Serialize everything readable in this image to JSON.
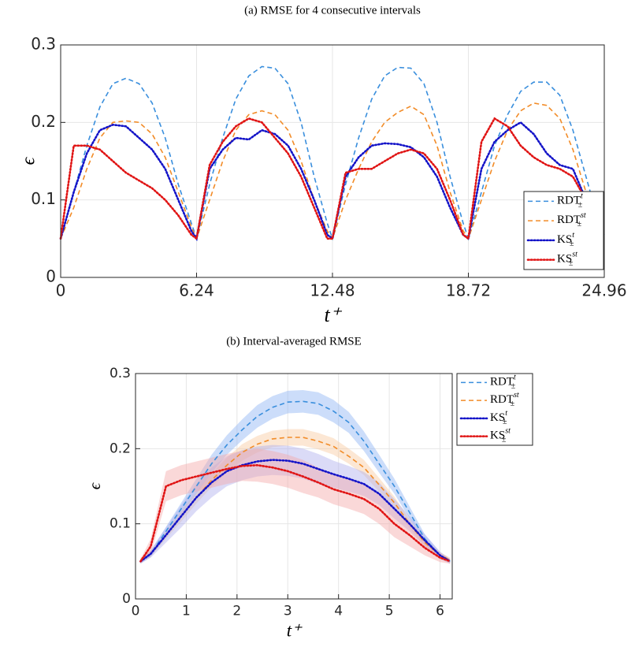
{
  "chart_data": [
    {
      "type": "line",
      "title": "(a) RMSE for 4 consecutive intervals",
      "xlabel": "t⁺",
      "ylabel": "ϵ",
      "xlim": [
        0,
        24.96
      ],
      "ylim": [
        0,
        0.3
      ],
      "xticks": [
        0,
        6.24,
        12.48,
        18.72,
        24.96
      ],
      "yticks": [
        0,
        0.1,
        0.2,
        0.3
      ],
      "grid": true,
      "legend": "lower right",
      "x": [
        0,
        0.6,
        1.2,
        1.8,
        2.4,
        3.0,
        3.6,
        4.2,
        4.8,
        5.4,
        6.0,
        6.24,
        6.84,
        7.44,
        8.04,
        8.64,
        9.24,
        9.84,
        10.44,
        11.04,
        11.64,
        12.24,
        12.48,
        13.08,
        13.68,
        14.28,
        14.88,
        15.48,
        16.08,
        16.68,
        17.28,
        17.88,
        18.48,
        18.72,
        19.32,
        19.92,
        20.52,
        21.12,
        21.72,
        22.32,
        22.92,
        23.52,
        24.12,
        24.72,
        24.96
      ],
      "series": [
        {
          "name": "RDT",
          "name_sup": "t",
          "name_sub": "±",
          "color": "#3a8fdd",
          "style": "dashed",
          "values": [
            0.05,
            0.11,
            0.17,
            0.22,
            0.25,
            0.257,
            0.25,
            0.225,
            0.18,
            0.12,
            0.07,
            0.05,
            0.12,
            0.18,
            0.23,
            0.26,
            0.272,
            0.27,
            0.25,
            0.2,
            0.13,
            0.07,
            0.05,
            0.12,
            0.18,
            0.23,
            0.26,
            0.271,
            0.27,
            0.25,
            0.2,
            0.13,
            0.07,
            0.05,
            0.11,
            0.17,
            0.21,
            0.24,
            0.252,
            0.252,
            0.235,
            0.19,
            0.13,
            0.07,
            0.055
          ]
        },
        {
          "name": "RDT",
          "name_sup": "st",
          "name_sub": "±",
          "color": "#f28c28",
          "style": "dashed",
          "values": [
            0.05,
            0.09,
            0.14,
            0.18,
            0.2,
            0.202,
            0.2,
            0.185,
            0.155,
            0.11,
            0.065,
            0.05,
            0.1,
            0.15,
            0.19,
            0.21,
            0.215,
            0.21,
            0.19,
            0.15,
            0.1,
            0.06,
            0.05,
            0.1,
            0.14,
            0.175,
            0.2,
            0.213,
            0.221,
            0.21,
            0.17,
            0.11,
            0.06,
            0.05,
            0.1,
            0.15,
            0.19,
            0.215,
            0.225,
            0.222,
            0.205,
            0.165,
            0.11,
            0.06,
            0.05
          ]
        },
        {
          "name": "KS",
          "name_sup": "t",
          "name_sub": "±",
          "color": "#1414c8",
          "style": "dotted",
          "values": [
            0.05,
            0.11,
            0.16,
            0.19,
            0.197,
            0.195,
            0.18,
            0.165,
            0.14,
            0.1,
            0.06,
            0.05,
            0.14,
            0.165,
            0.18,
            0.178,
            0.19,
            0.185,
            0.17,
            0.14,
            0.1,
            0.055,
            0.05,
            0.13,
            0.155,
            0.17,
            0.173,
            0.172,
            0.168,
            0.155,
            0.13,
            0.09,
            0.055,
            0.05,
            0.14,
            0.175,
            0.19,
            0.2,
            0.185,
            0.16,
            0.145,
            0.14,
            0.1,
            0.06,
            0.05
          ]
        },
        {
          "name": "KS",
          "name_sup": "st",
          "name_sub": "±",
          "color": "#e01414",
          "style": "dotted",
          "values": [
            0.05,
            0.17,
            0.17,
            0.165,
            0.15,
            0.135,
            0.125,
            0.115,
            0.1,
            0.08,
            0.055,
            0.05,
            0.145,
            0.175,
            0.195,
            0.205,
            0.2,
            0.18,
            0.16,
            0.13,
            0.09,
            0.05,
            0.05,
            0.135,
            0.14,
            0.14,
            0.15,
            0.16,
            0.165,
            0.16,
            0.14,
            0.1,
            0.055,
            0.05,
            0.175,
            0.205,
            0.195,
            0.17,
            0.155,
            0.145,
            0.14,
            0.13,
            0.1,
            0.06,
            0.05
          ]
        }
      ]
    },
    {
      "type": "line",
      "title": "(b) Interval-averaged RMSE",
      "xlabel": "t⁺",
      "ylabel": "ϵ",
      "xlim": [
        0,
        6.24
      ],
      "ylim": [
        0,
        0.3
      ],
      "xticks": [
        0,
        1,
        2,
        3,
        4,
        5,
        6
      ],
      "yticks": [
        0,
        0.1,
        0.2,
        0.3
      ],
      "grid": true,
      "legend": "upper right outside",
      "x": [
        0.1,
        0.3,
        0.6,
        0.9,
        1.2,
        1.5,
        1.8,
        2.1,
        2.4,
        2.7,
        3.0,
        3.3,
        3.6,
        3.9,
        4.2,
        4.5,
        4.8,
        5.1,
        5.4,
        5.7,
        6.0,
        6.2
      ],
      "series": [
        {
          "name": "RDT",
          "name_sup": "t",
          "name_sub": "±",
          "color": "#3a8fdd",
          "band_color": "#8fb4f5",
          "style": "dashed",
          "values": [
            0.05,
            0.06,
            0.09,
            0.12,
            0.15,
            0.18,
            0.205,
            0.225,
            0.243,
            0.255,
            0.262,
            0.263,
            0.26,
            0.25,
            0.235,
            0.21,
            0.18,
            0.15,
            0.115,
            0.08,
            0.058,
            0.05
          ],
          "errors": [
            0.003,
            0.004,
            0.006,
            0.008,
            0.01,
            0.012,
            0.013,
            0.014,
            0.015,
            0.015,
            0.015,
            0.015,
            0.015,
            0.015,
            0.014,
            0.013,
            0.012,
            0.01,
            0.008,
            0.006,
            0.004,
            0.003
          ]
        },
        {
          "name": "RDT",
          "name_sup": "st",
          "name_sub": "±",
          "color": "#f28c28",
          "band_color": "#f8c9a0",
          "style": "dashed",
          "values": [
            0.052,
            0.06,
            0.085,
            0.11,
            0.135,
            0.158,
            0.178,
            0.195,
            0.206,
            0.213,
            0.215,
            0.215,
            0.21,
            0.203,
            0.19,
            0.175,
            0.152,
            0.128,
            0.1,
            0.075,
            0.058,
            0.052
          ],
          "errors": [
            0.003,
            0.004,
            0.005,
            0.007,
            0.008,
            0.009,
            0.01,
            0.011,
            0.011,
            0.011,
            0.011,
            0.011,
            0.011,
            0.011,
            0.01,
            0.01,
            0.009,
            0.008,
            0.006,
            0.005,
            0.004,
            0.003
          ]
        },
        {
          "name": "KS",
          "name_sup": "t",
          "name_sub": "±",
          "color": "#1414c8",
          "band_color": "#b0b0ee",
          "style": "dotted",
          "values": [
            0.05,
            0.06,
            0.085,
            0.11,
            0.135,
            0.155,
            0.17,
            0.178,
            0.183,
            0.185,
            0.184,
            0.18,
            0.173,
            0.166,
            0.16,
            0.153,
            0.14,
            0.12,
            0.1,
            0.078,
            0.058,
            0.05
          ],
          "errors": [
            0.003,
            0.005,
            0.01,
            0.015,
            0.018,
            0.02,
            0.02,
            0.02,
            0.02,
            0.02,
            0.02,
            0.02,
            0.02,
            0.018,
            0.017,
            0.016,
            0.015,
            0.013,
            0.01,
            0.008,
            0.005,
            0.003
          ]
        },
        {
          "name": "KS",
          "name_sup": "st",
          "name_sub": "±",
          "color": "#e01414",
          "band_color": "#f5a8a8",
          "style": "dotted",
          "values": [
            0.05,
            0.07,
            0.15,
            0.158,
            0.163,
            0.168,
            0.173,
            0.177,
            0.178,
            0.175,
            0.17,
            0.163,
            0.155,
            0.146,
            0.14,
            0.133,
            0.12,
            0.1,
            0.085,
            0.068,
            0.055,
            0.05
          ],
          "errors": [
            0.003,
            0.01,
            0.02,
            0.02,
            0.02,
            0.02,
            0.02,
            0.02,
            0.022,
            0.022,
            0.022,
            0.022,
            0.02,
            0.02,
            0.02,
            0.02,
            0.02,
            0.018,
            0.015,
            0.01,
            0.006,
            0.003
          ]
        }
      ]
    }
  ]
}
